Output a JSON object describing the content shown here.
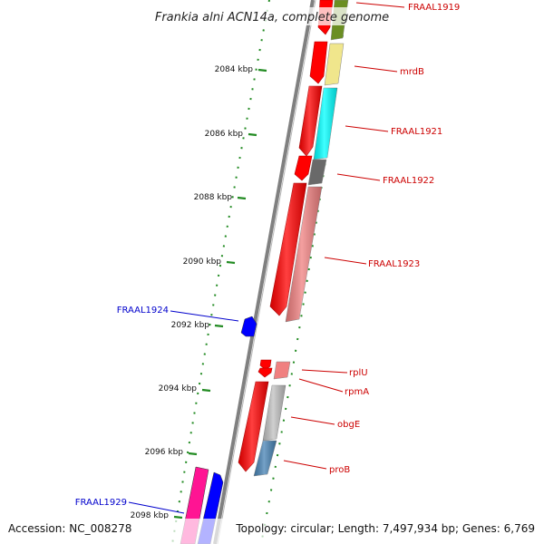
{
  "title": "Frankia alni ACN14a, complete genome",
  "footer": {
    "accession": "Accession: NC_008278",
    "topology": "Topology: circular; Length: 7,497,934 bp; Genes: 6,769"
  },
  "kbp_ticks": [
    "2084 kbp",
    "2086 kbp",
    "2088 kbp",
    "2090 kbp",
    "2092 kbp",
    "2094 kbp",
    "2096 kbp",
    "2098 kbp"
  ],
  "genes": [
    {
      "name": "FRAAL1919",
      "strand": "forward",
      "color": "#6b8e23"
    },
    {
      "name": "mrdB",
      "strand": "forward",
      "color": "#f0e68c"
    },
    {
      "name": "FRAAL1921",
      "strand": "forward",
      "color": "#00ffff"
    },
    {
      "name": "FRAAL1922",
      "strand": "forward",
      "color": "#696969"
    },
    {
      "name": "FRAAL1923",
      "strand": "forward",
      "color": "#f08080"
    },
    {
      "name": "rplU",
      "strand": "forward",
      "color": "#f08080"
    },
    {
      "name": "rpmA",
      "strand": "forward",
      "color": "#ff0000"
    },
    {
      "name": "obgE",
      "strand": "forward",
      "color": "#c0c0c0"
    },
    {
      "name": "proB",
      "strand": "forward",
      "color": "#4682b4"
    },
    {
      "name": "FRAAL1924",
      "strand": "reverse",
      "color": "#0000ff"
    },
    {
      "name": "FRAAL1929",
      "strand": "reverse",
      "color": "#0000ff"
    }
  ],
  "colors": {
    "cds": "#ff0000",
    "forward_label": "#cc0000",
    "reverse_label": "#0000cc",
    "backbone": "#808080",
    "ticks": "#228b22"
  }
}
